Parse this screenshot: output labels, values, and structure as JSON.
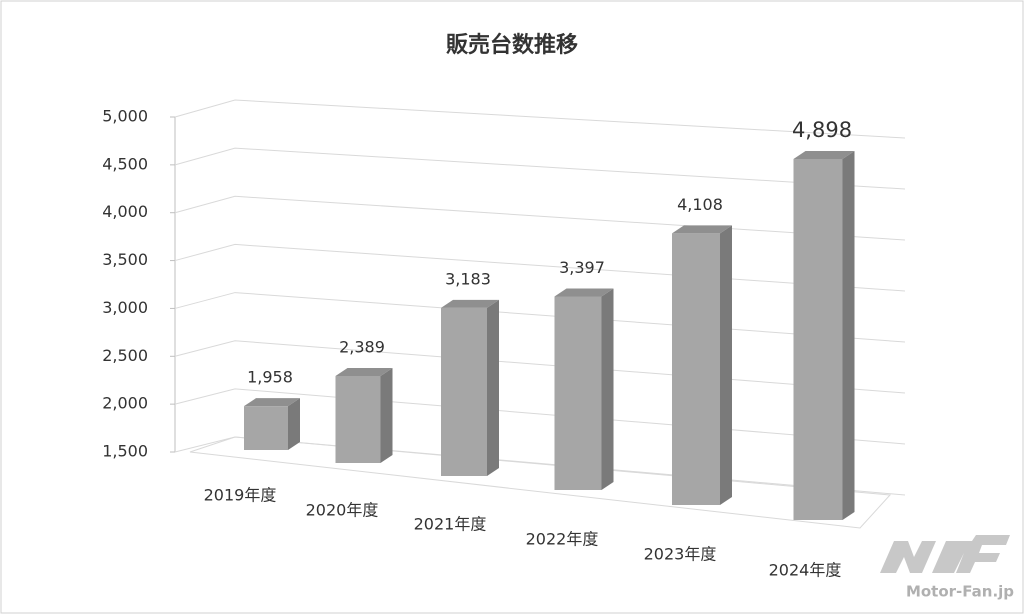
{
  "chart_data": {
    "type": "bar3d",
    "title": "販売台数推移",
    "categories": [
      "2019年度",
      "2020年度",
      "2021年度",
      "2022年度",
      "2023年度",
      "2024年度"
    ],
    "values": [
      1958,
      2389,
      3183,
      3397,
      4108,
      4898
    ],
    "value_labels": [
      "1,958",
      "2,389",
      "3,183",
      "3,397",
      "4,108",
      "4,898"
    ],
    "color": "#a6a6a6",
    "ylim": [
      1500,
      5000
    ],
    "yticks": [
      {
        "value": 1500,
        "label": "1,500"
      },
      {
        "value": 2000,
        "label": "2,000"
      },
      {
        "value": 2500,
        "label": "2,500"
      },
      {
        "value": 3000,
        "label": "3,000"
      },
      {
        "value": 3500,
        "label": "3,500"
      },
      {
        "value": 4000,
        "label": "4,000"
      },
      {
        "value": 4500,
        "label": "4,500"
      },
      {
        "value": 5000,
        "label": "5,000"
      }
    ],
    "grid": true,
    "watermark": "Motor-Fan.jp"
  }
}
